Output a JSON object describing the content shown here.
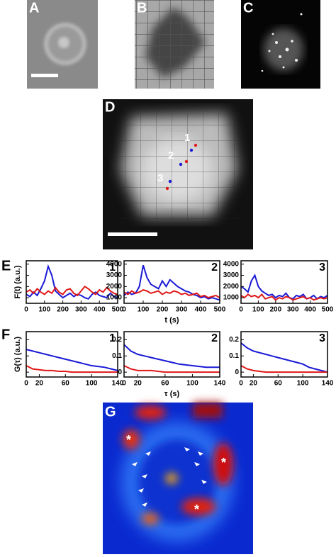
{
  "panels": {
    "a": "A",
    "b": "B",
    "c": "C",
    "d": {
      "letter": "D",
      "spots": [
        "1",
        "2",
        "3"
      ]
    },
    "e": "E",
    "f": "F",
    "g": {
      "letter": "G",
      "stars": [
        "*",
        "*",
        "*"
      ]
    }
  },
  "chart_data": [
    {
      "type": "line",
      "label": "1",
      "ylabel": "F(t) (a.u.)",
      "x": [
        0,
        20,
        40,
        60,
        80,
        100,
        120,
        140,
        160,
        180,
        200,
        220,
        240,
        260,
        280,
        300,
        320,
        340,
        360,
        380,
        400,
        420,
        440,
        460,
        480,
        500
      ],
      "xlim": [
        0,
        500
      ],
      "ylim": [
        500,
        4300
      ],
      "xticks": [
        0,
        100,
        200,
        300,
        400,
        500
      ],
      "yticks": [
        1000,
        2000,
        3000,
        4000
      ],
      "ytick_labels": false,
      "series": [
        {
          "color": "#1a1ad6",
          "values": [
            1300,
            1100,
            1500,
            1200,
            1800,
            2500,
            3800,
            3000,
            1600,
            1300,
            1000,
            1200,
            1400,
            1100,
            1300,
            1200,
            1000,
            900,
            1300,
            1500,
            1200,
            1100,
            1000,
            1400,
            1100,
            1000
          ]
        },
        {
          "color": "#e01818",
          "values": [
            1500,
            1700,
            1400,
            1800,
            1500,
            1300,
            1600,
            1400,
            1900,
            1500,
            1300,
            1700,
            1800,
            1400,
            1200,
            1600,
            2000,
            1800,
            1500,
            1300,
            1700,
            1500,
            1900,
            1600,
            1400,
            1300
          ]
        }
      ]
    },
    {
      "type": "line",
      "label": "2",
      "xlabel": "t (s)",
      "x": [
        0,
        20,
        40,
        60,
        80,
        100,
        120,
        140,
        160,
        180,
        200,
        220,
        240,
        260,
        280,
        300,
        320,
        340,
        360,
        380,
        400,
        420,
        440,
        460,
        480,
        500
      ],
      "xlim": [
        0,
        500
      ],
      "ylim": [
        500,
        4300
      ],
      "xticks": [
        0,
        100,
        200,
        300,
        400,
        500
      ],
      "yticks": [
        1000,
        2000,
        3000,
        4000
      ],
      "ytick_labels": true,
      "series": [
        {
          "color": "#1a1ad6",
          "values": [
            1200,
            1500,
            1300,
            1400,
            2000,
            3900,
            2800,
            2200,
            2000,
            1800,
            2500,
            2000,
            2600,
            2300,
            2000,
            1800,
            1600,
            1500,
            1300,
            1200,
            1000,
            1100,
            900,
            1000,
            900,
            800
          ]
        },
        {
          "color": "#e01818",
          "values": [
            1500,
            1300,
            1600,
            1400,
            1500,
            1700,
            1600,
            1400,
            1500,
            1600,
            1300,
            1500,
            1400,
            1600,
            1500,
            1300,
            1400,
            1200,
            1300,
            1400,
            1100,
            1200,
            1000,
            1100,
            1200,
            1000
          ]
        }
      ]
    },
    {
      "type": "line",
      "label": "3",
      "x": [
        0,
        20,
        40,
        60,
        80,
        100,
        120,
        140,
        160,
        180,
        200,
        220,
        240,
        260,
        280,
        300,
        320,
        340,
        360,
        380,
        400,
        420,
        440,
        460,
        480,
        500
      ],
      "xlim": [
        0,
        500
      ],
      "ylim": [
        500,
        4300
      ],
      "xticks": [
        0,
        100,
        200,
        300,
        400,
        500
      ],
      "yticks": [
        1000,
        2000,
        3000,
        4000
      ],
      "ytick_labels": true,
      "series": [
        {
          "color": "#1a1ad6",
          "values": [
            2000,
            1800,
            1500,
            2500,
            3000,
            2000,
            1600,
            1400,
            1200,
            1300,
            1000,
            1200,
            1100,
            1400,
            1000,
            900,
            1200,
            1100,
            1300,
            900,
            1000,
            1200,
            900,
            1100,
            1000,
            1200
          ]
        },
        {
          "color": "#e01818",
          "values": [
            1200,
            1000,
            1300,
            1100,
            1200,
            1000,
            1300,
            900,
            1000,
            1100,
            800,
            1000,
            900,
            1100,
            1000,
            800,
            900,
            1000,
            1100,
            900,
            1000,
            800,
            900,
            1000,
            900,
            1000
          ]
        }
      ]
    },
    {
      "type": "line",
      "label": "1",
      "ylabel": "G(τ) (a.u.)",
      "x": [
        0,
        10,
        20,
        30,
        40,
        50,
        60,
        70,
        80,
        90,
        100,
        110,
        120,
        130,
        140
      ],
      "xlim": [
        0,
        140
      ],
      "ylim": [
        -0.03,
        0.25
      ],
      "xticks": [
        0,
        20,
        60,
        100,
        140
      ],
      "yticks": [
        0,
        0.1,
        0.2
      ],
      "ytick_labels": false,
      "series": [
        {
          "color": "#1a1ad6",
          "values": [
            0.14,
            0.13,
            0.12,
            0.11,
            0.1,
            0.09,
            0.08,
            0.07,
            0.06,
            0.05,
            0.04,
            0.035,
            0.03,
            0.02,
            0.01
          ]
        },
        {
          "color": "#e01818",
          "values": [
            0.04,
            0.02,
            0.015,
            0.01,
            0.01,
            0.005,
            0.005,
            0,
            0,
            0,
            0,
            0,
            0,
            0,
            0
          ]
        }
      ]
    },
    {
      "type": "line",
      "label": "2",
      "xlabel": "τ (s)",
      "x": [
        0,
        10,
        20,
        30,
        40,
        50,
        60,
        70,
        80,
        90,
        100,
        110,
        120,
        130,
        140
      ],
      "xlim": [
        0,
        140
      ],
      "ylim": [
        -0.03,
        0.25
      ],
      "xticks": [
        0,
        20,
        60,
        100,
        140
      ],
      "yticks": [
        0,
        0.1,
        0.2
      ],
      "ytick_labels": true,
      "series": [
        {
          "color": "#1a1ad6",
          "values": [
            0.17,
            0.13,
            0.11,
            0.1,
            0.09,
            0.08,
            0.07,
            0.06,
            0.05,
            0.045,
            0.04,
            0.035,
            0.03,
            0.03,
            0.03
          ]
        },
        {
          "color": "#e01818",
          "values": [
            0.04,
            0.02,
            0.01,
            0.01,
            0.01,
            0.005,
            0,
            0,
            0,
            0,
            0,
            0,
            0,
            0,
            0
          ]
        }
      ]
    },
    {
      "type": "line",
      "label": "3",
      "x": [
        0,
        10,
        20,
        30,
        40,
        50,
        60,
        70,
        80,
        90,
        100,
        110,
        120,
        130,
        140
      ],
      "xlim": [
        0,
        140
      ],
      "ylim": [
        -0.03,
        0.25
      ],
      "xticks": [
        0,
        20,
        60,
        100,
        140
      ],
      "yticks": [
        0,
        0.1,
        0.2
      ],
      "ytick_labels": true,
      "series": [
        {
          "color": "#1a1ad6",
          "values": [
            0.18,
            0.15,
            0.13,
            0.12,
            0.11,
            0.1,
            0.09,
            0.08,
            0.07,
            0.06,
            0.05,
            0.03,
            0.02,
            0.01,
            0
          ]
        },
        {
          "color": "#e01818",
          "values": [
            0.04,
            0.02,
            0.01,
            0.005,
            0,
            0,
            0,
            0,
            0,
            0,
            0,
            0,
            0,
            0,
            0
          ]
        }
      ]
    }
  ]
}
